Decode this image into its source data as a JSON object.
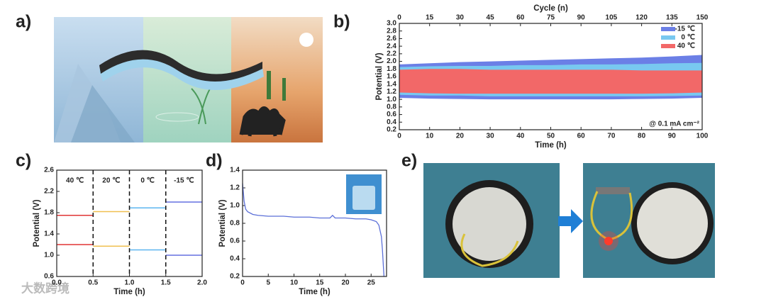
{
  "panel_labels": [
    "a)",
    "b)",
    "c)",
    "d)",
    "e)"
  ],
  "watermark": "大数跨境",
  "chart_data": [
    {
      "type": "band",
      "xlabel": "Time (h)",
      "ylabel": "Potential (V)",
      "x2label": "Cycle (n)",
      "annotation": "@ 0.1 mA cm⁻²",
      "legend": "top-right",
      "x": [
        0,
        10,
        20,
        30,
        40,
        50,
        60,
        70,
        80,
        90,
        100
      ],
      "series": [
        {
          "name": "-15 ℃",
          "color": "#6b7fe6",
          "high": [
            1.92,
            1.95,
            1.98,
            2.0,
            2.02,
            2.04,
            2.06,
            2.08,
            2.1,
            2.13,
            2.17
          ],
          "low": [
            1.04,
            1.02,
            1.01,
            1.0,
            1.0,
            1.0,
            1.0,
            1.0,
            1.01,
            1.02,
            1.04
          ]
        },
        {
          "name": "0 ℃",
          "color": "#78c8f0",
          "high": [
            1.85,
            1.87,
            1.88,
            1.88,
            1.9,
            1.9,
            1.92,
            1.92,
            1.93,
            1.95,
            1.96
          ],
          "low": [
            1.12,
            1.1,
            1.1,
            1.08,
            1.08,
            1.08,
            1.08,
            1.08,
            1.08,
            1.09,
            1.1
          ]
        },
        {
          "name": "40 ℃",
          "color": "#f26868",
          "high": [
            1.78,
            1.8,
            1.8,
            1.78,
            1.78,
            1.78,
            1.78,
            1.78,
            1.76,
            1.76,
            1.76
          ],
          "low": [
            1.18,
            1.16,
            1.15,
            1.15,
            1.15,
            1.15,
            1.15,
            1.15,
            1.15,
            1.16,
            1.18
          ]
        }
      ],
      "xlim": [
        0,
        100
      ],
      "xticks": [
        0,
        10,
        20,
        30,
        40,
        50,
        60,
        70,
        80,
        90,
        100
      ],
      "x2lim": [
        0,
        150
      ],
      "x2ticks": [
        0,
        15,
        30,
        45,
        60,
        75,
        90,
        105,
        120,
        135,
        150
      ],
      "ylim": [
        0.2,
        3.0
      ],
      "yticks": [
        0.2,
        0.4,
        0.6,
        0.8,
        {
          "value": 1,
          "label": "1.0"
        },
        1.2,
        1.4,
        1.6,
        1.8,
        {
          "value": 2,
          "label": "2.0"
        },
        2.2,
        2.4,
        2.6,
        2.8,
        {
          "value": 3,
          "label": "3.0"
        }
      ]
    },
    {
      "type": "step",
      "xlabel": "Time (h)",
      "ylabel": "Potential (V)",
      "series": [
        {
          "name": "40 ℃",
          "color": "#e03535",
          "x": [
            0,
            0.5
          ],
          "values": [
            1.75,
            1.2
          ]
        },
        {
          "name": "20 ℃",
          "color": "#f0c050",
          "x": [
            0.5,
            1
          ],
          "values": [
            1.82,
            1.17
          ]
        },
        {
          "name": "0 ℃",
          "color": "#5cb6f0",
          "x": [
            1,
            1.5
          ],
          "values": [
            1.89,
            1.1
          ]
        },
        {
          "name": "-15 ℃",
          "color": "#6570e0",
          "x": [
            1.5,
            2
          ],
          "values": [
            2.0,
            1.0
          ]
        }
      ],
      "xlim": [
        0,
        2
      ],
      "xticks": [
        {
          "value": 0,
          "label": "0.0"
        },
        0.5,
        {
          "value": 1,
          "label": "1.0"
        },
        1.5,
        {
          "value": 2,
          "label": "2.0"
        }
      ],
      "ylim": [
        0.6,
        2.6
      ],
      "yticks": [
        0.6,
        {
          "value": 1,
          "label": "1.0"
        },
        1.4,
        1.8,
        2.2,
        2.6
      ]
    },
    {
      "type": "line",
      "xlabel": "Time (h)",
      "ylabel": "Potential (V)",
      "color": "#5b6fd8",
      "x": [
        0,
        0.3,
        0.6,
        1,
        2,
        3,
        5,
        8,
        10,
        13,
        15,
        17,
        17.5,
        18,
        20,
        22,
        24,
        25,
        26,
        26.5,
        27,
        27.2,
        27.4,
        27.5
      ],
      "values": [
        1.25,
        1.05,
        0.96,
        0.93,
        0.9,
        0.89,
        0.88,
        0.88,
        0.87,
        0.87,
        0.86,
        0.86,
        0.89,
        0.86,
        0.86,
        0.85,
        0.85,
        0.84,
        0.82,
        0.78,
        0.65,
        0.5,
        0.3,
        0.2
      ],
      "xlim": [
        0,
        28
      ],
      "xticks": [
        0,
        5,
        10,
        15,
        20,
        25
      ],
      "ylim": [
        0.2,
        1.4
      ],
      "yticks": [
        0.2,
        0.4,
        0.6,
        0.8,
        {
          "value": 1,
          "label": "1.0"
        },
        1.2,
        1.4
      ]
    }
  ]
}
